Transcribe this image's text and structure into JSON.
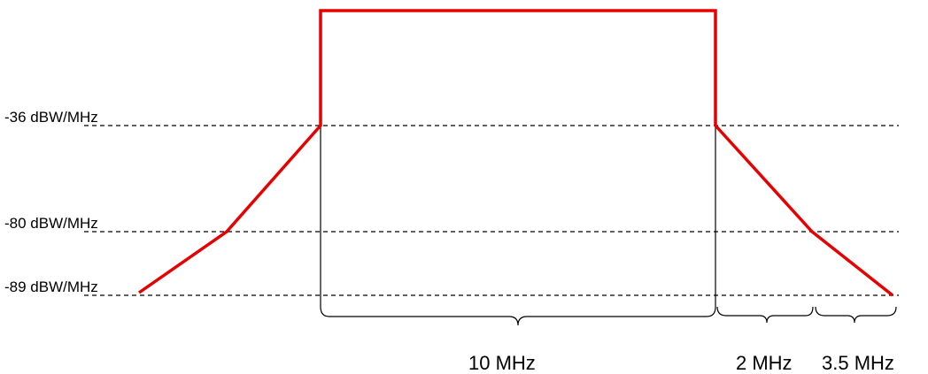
{
  "colors": {
    "mask_line": "#e60000",
    "guide_line": "#000000",
    "background": "#ffffff"
  },
  "levels": {
    "level_36": "-36 dBW/MHz",
    "level_80": "-80 dBW/MHz",
    "level_89": "-89 dBW/MHz"
  },
  "spans": {
    "channel": "10 MHz",
    "offset_1": "2 MHz",
    "offset_2": "3.5 MHz"
  }
}
